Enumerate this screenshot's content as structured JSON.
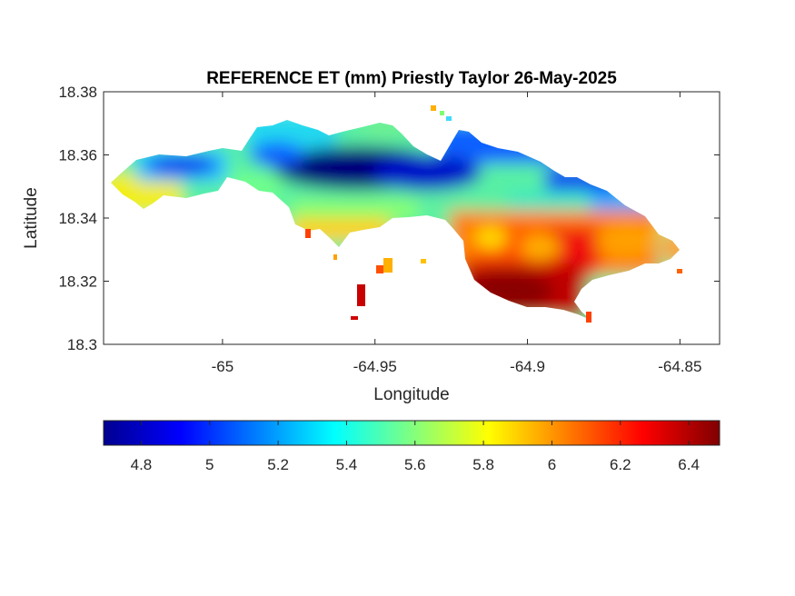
{
  "chart_data": {
    "type": "heatmap",
    "title": "REFERENCE ET (mm) Priestly Taylor 26-May-2025",
    "xlabel": "Longitude",
    "ylabel": "Latitude",
    "xlim": [
      -65.039,
      -64.837
    ],
    "ylim": [
      18.3,
      18.38
    ],
    "x_ticks": [
      "-65",
      "-64.95",
      "-64.9",
      "-64.85"
    ],
    "x_tick_values": [
      -65.0,
      -64.95,
      -64.9,
      -64.85
    ],
    "y_ticks": [
      "18.38",
      "18.36",
      "18.34",
      "18.32",
      "18.3"
    ],
    "y_tick_values": [
      18.38,
      18.36,
      18.34,
      18.32,
      18.3
    ],
    "colorbar": {
      "orientation": "horizontal",
      "colormap": "jet",
      "range": [
        4.69,
        6.49
      ],
      "tick_labels": [
        "4.8",
        "5",
        "5.2",
        "5.4",
        "5.6",
        "5.8",
        "6",
        "6.2",
        "6.4"
      ],
      "tick_values": [
        4.8,
        5.0,
        5.2,
        5.4,
        5.6,
        5.8,
        6.0,
        6.2,
        6.4
      ]
    },
    "grid": false,
    "zones": [
      {
        "region": "north-central ridge",
        "value": 4.75
      },
      {
        "region": "northern coast",
        "value": 5.1
      },
      {
        "region": "western end",
        "value": 5.7
      },
      {
        "region": "south-central coast",
        "value": 5.9
      },
      {
        "region": "southeast lowlands",
        "value": 6.3
      },
      {
        "region": "south coast",
        "value": 6.45
      },
      {
        "region": "eastern end",
        "value": 6.1
      }
    ]
  }
}
